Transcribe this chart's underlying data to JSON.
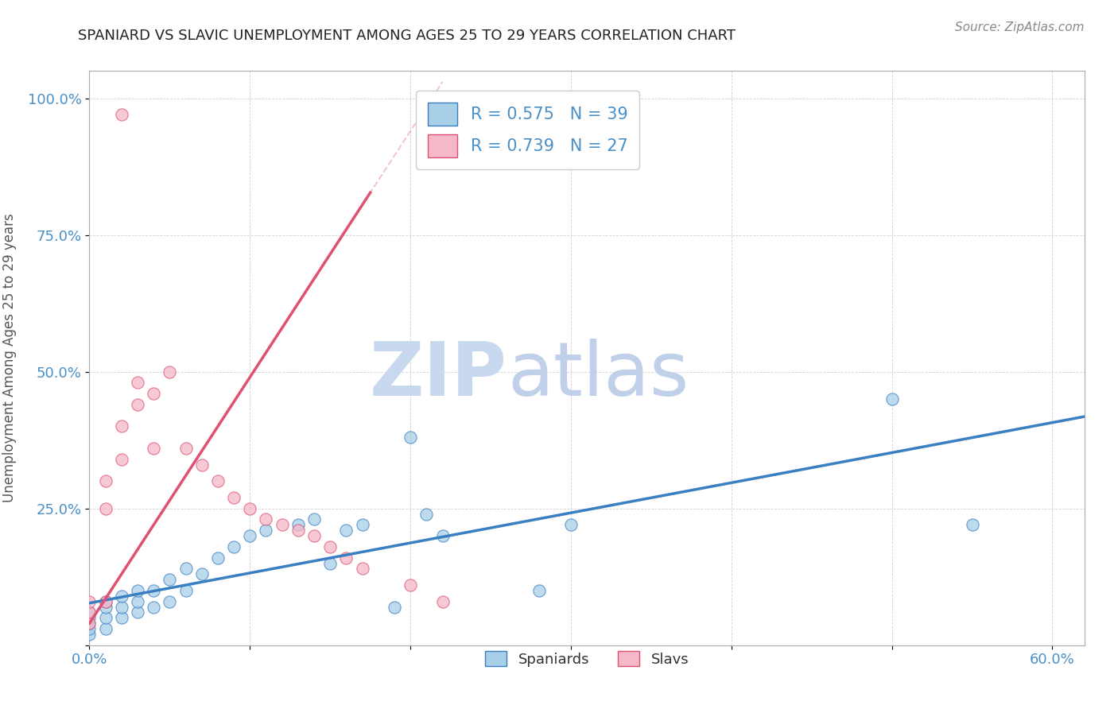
{
  "title": "SPANIARD VS SLAVIC UNEMPLOYMENT AMONG AGES 25 TO 29 YEARS CORRELATION CHART",
  "source_text": "Source: ZipAtlas.com",
  "spaniards_x": [
    0.0,
    0.0,
    0.0,
    0.0,
    0.0,
    0.01,
    0.01,
    0.01,
    0.01,
    0.02,
    0.02,
    0.02,
    0.03,
    0.03,
    0.03,
    0.04,
    0.04,
    0.05,
    0.05,
    0.06,
    0.06,
    0.07,
    0.08,
    0.09,
    0.1,
    0.11,
    0.13,
    0.14,
    0.15,
    0.16,
    0.17,
    0.19,
    0.2,
    0.21,
    0.22,
    0.28,
    0.3,
    0.5,
    0.55
  ],
  "spaniards_y": [
    0.02,
    0.03,
    0.04,
    0.05,
    0.06,
    0.03,
    0.05,
    0.07,
    0.08,
    0.05,
    0.07,
    0.09,
    0.06,
    0.08,
    0.1,
    0.07,
    0.1,
    0.08,
    0.12,
    0.1,
    0.14,
    0.13,
    0.16,
    0.18,
    0.2,
    0.21,
    0.22,
    0.23,
    0.15,
    0.21,
    0.22,
    0.07,
    0.38,
    0.24,
    0.2,
    0.1,
    0.22,
    0.45,
    0.22
  ],
  "slavs_x": [
    0.0,
    0.0,
    0.0,
    0.01,
    0.01,
    0.01,
    0.02,
    0.02,
    0.03,
    0.03,
    0.04,
    0.04,
    0.05,
    0.06,
    0.07,
    0.08,
    0.09,
    0.1,
    0.11,
    0.12,
    0.13,
    0.14,
    0.15,
    0.16,
    0.17,
    0.2,
    0.22
  ],
  "slavs_y": [
    0.04,
    0.06,
    0.08,
    0.08,
    0.25,
    0.3,
    0.34,
    0.4,
    0.44,
    0.48,
    0.36,
    0.46,
    0.5,
    0.36,
    0.33,
    0.3,
    0.27,
    0.25,
    0.23,
    0.22,
    0.21,
    0.2,
    0.18,
    0.16,
    0.14,
    0.11,
    0.08
  ],
  "slavs_outlier_x": [
    0.02
  ],
  "slavs_outlier_y": [
    0.97
  ],
  "spaniards_color": "#a8cfe8",
  "slavs_color": "#f5b8c8",
  "spaniards_line_color": "#3a7fc1",
  "slavs_line_color": "#e05070",
  "slavs_dash_color": "#e8a0b0",
  "R_spaniards": 0.575,
  "N_spaniards": 39,
  "R_slavs": 0.739,
  "N_slavs": 27,
  "watermark_zip": "ZIP",
  "watermark_atlas": "atlas",
  "watermark_color_zip": "#c8d8ee",
  "watermark_color_atlas": "#c0d0e8",
  "legend_label_spaniards": "Spaniards",
  "legend_label_slavs": "Slavs",
  "xlim": [
    0.0,
    0.62
  ],
  "ylim": [
    0.0,
    1.05
  ],
  "background_color": "#ffffff",
  "grid_color": "#cccccc",
  "title_color": "#222222",
  "axis_label_color": "#4a90c8",
  "ylabel": "Unemployment Among Ages 25 to 29 years",
  "legend_R_color": "#4a90c8",
  "legend_N_color": "#e05070"
}
